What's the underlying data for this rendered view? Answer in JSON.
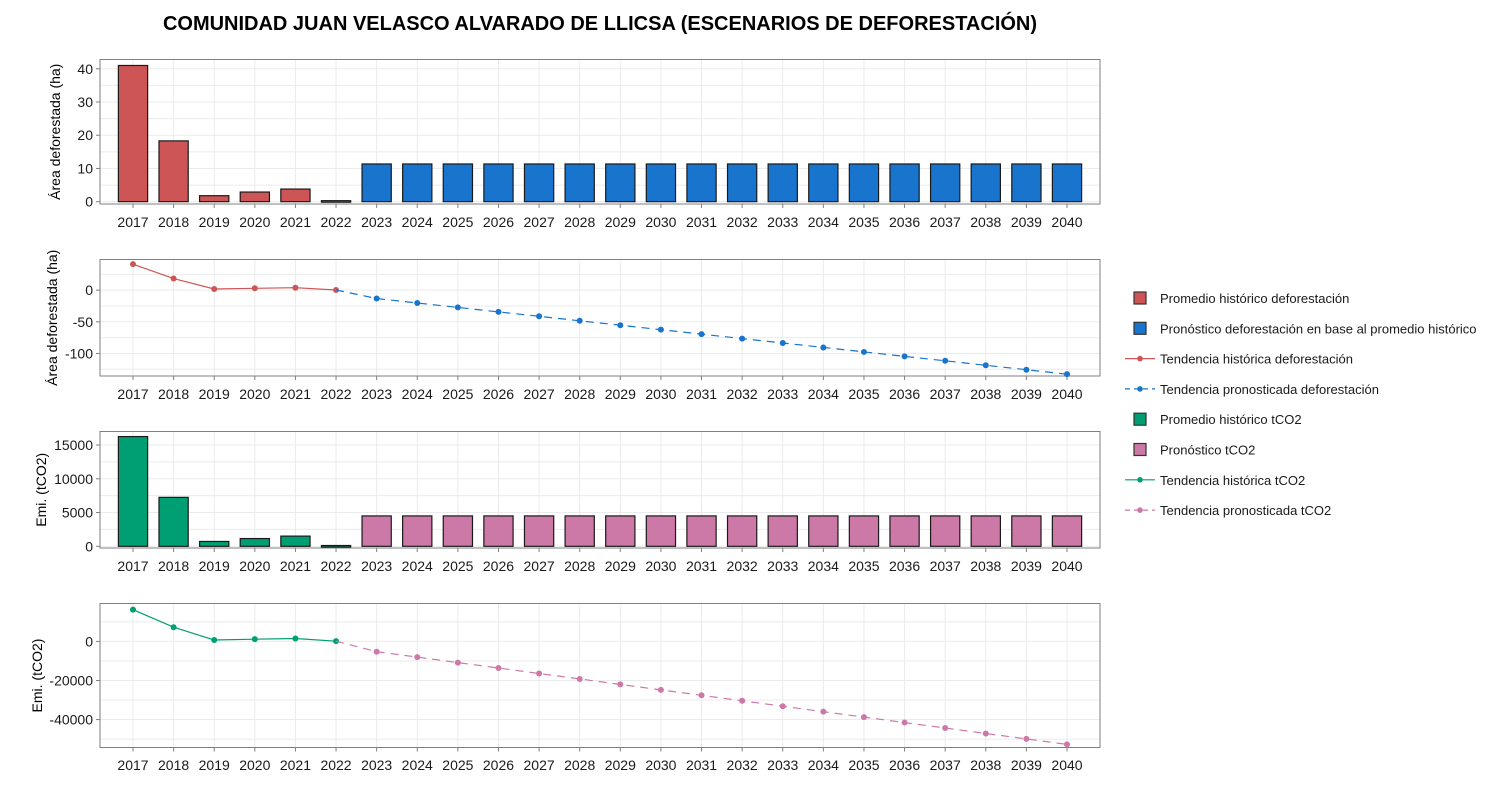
{
  "title": "COMUNIDAD JUAN VELASCO ALVARADO DE LLICSA (ESCENARIOS DE DEFORESTACIÓN)",
  "colors": {
    "hist_ha": "#CD5555",
    "fore_ha": "#1874CD",
    "hist_co2": "#009E73",
    "fore_co2": "#CC79A7",
    "bar_outline": "#1a1a1a"
  },
  "legend": {
    "placement": "right",
    "items": [
      {
        "label": "Promedio histórico deforestación",
        "kind": "box",
        "color_key": "hist_ha"
      },
      {
        "label": "Pronóstico deforestación en base al promedio histórico",
        "kind": "box",
        "color_key": "fore_ha"
      },
      {
        "label": "Tendencia histórica deforestación",
        "kind": "line-solid",
        "color_key": "hist_ha"
      },
      {
        "label": "Tendencia pronosticada deforestación",
        "kind": "line-dashed",
        "color_key": "fore_ha"
      },
      {
        "label": "Promedio histórico tCO2",
        "kind": "box",
        "color_key": "hist_co2"
      },
      {
        "label": "Pronóstico tCO2",
        "kind": "box",
        "color_key": "fore_co2"
      },
      {
        "label": "Tendencia histórica tCO2",
        "kind": "line-solid",
        "color_key": "hist_co2"
      },
      {
        "label": "Tendencia pronosticada tCO2",
        "kind": "line-dashed",
        "color_key": "fore_co2"
      }
    ]
  },
  "chart_data": [
    {
      "id": "bars-ha",
      "type": "bar",
      "ylabel": "Área deforestada (ha)",
      "xlabel": "",
      "categories": [
        "2017",
        "2018",
        "2019",
        "2020",
        "2021",
        "2022",
        "2023",
        "2024",
        "2025",
        "2026",
        "2027",
        "2028",
        "2029",
        "2030",
        "2031",
        "2032",
        "2033",
        "2034",
        "2035",
        "2036",
        "2037",
        "2038",
        "2039",
        "2040"
      ],
      "series": [
        {
          "name": "Promedio histórico deforestación",
          "color_key": "hist_ha",
          "values": [
            41.0,
            18.3,
            1.8,
            2.9,
            3.8,
            0.3,
            null,
            null,
            null,
            null,
            null,
            null,
            null,
            null,
            null,
            null,
            null,
            null,
            null,
            null,
            null,
            null,
            null,
            null
          ]
        },
        {
          "name": "Pronóstico deforestación en base al promedio histórico",
          "color_key": "fore_ha",
          "values": [
            null,
            null,
            null,
            null,
            null,
            null,
            11.35,
            11.35,
            11.35,
            11.35,
            11.35,
            11.35,
            11.35,
            11.35,
            11.35,
            11.35,
            11.35,
            11.35,
            11.35,
            11.35,
            11.35,
            11.35,
            11.35,
            11.35
          ]
        }
      ],
      "yticks": [
        0,
        10,
        20,
        30,
        40
      ],
      "ylim": [
        -0.7,
        42.8
      ],
      "grid": true
    },
    {
      "id": "trend-ha",
      "type": "line",
      "ylabel": "Área deforestada (ha)",
      "xlabel": "",
      "categories": [
        "2017",
        "2018",
        "2019",
        "2020",
        "2021",
        "2022",
        "2023",
        "2024",
        "2025",
        "2026",
        "2027",
        "2028",
        "2029",
        "2030",
        "2031",
        "2032",
        "2033",
        "2034",
        "2035",
        "2036",
        "2037",
        "2038",
        "2039",
        "2040"
      ],
      "series": [
        {
          "name": "Tendencia histórica deforestación",
          "color_key": "hist_ha",
          "dashed": false,
          "values": [
            41.0,
            18.3,
            1.8,
            2.9,
            3.8,
            0.3,
            null,
            null,
            null,
            null,
            null,
            null,
            null,
            null,
            null,
            null,
            null,
            null,
            null,
            null,
            null,
            null,
            null,
            null
          ]
        },
        {
          "name": "Tendencia pronosticada deforestación",
          "color_key": "fore_ha",
          "dashed": true,
          "connect_from_index": 5,
          "values": [
            null,
            null,
            null,
            null,
            null,
            0.3,
            -13.2,
            -20.3,
            -27.3,
            -34.3,
            -41.3,
            -48.4,
            -55.4,
            -62.4,
            -69.5,
            -76.5,
            -83.5,
            -90.5,
            -97.6,
            -104.6,
            -111.6,
            -118.7,
            -125.7,
            -132.7
          ]
        }
      ],
      "yticks": [
        0,
        -50,
        -100
      ],
      "ylim": [
        -135.6,
        48.4
      ],
      "grid": true
    },
    {
      "id": "bars-co2",
      "type": "bar",
      "ylabel": "Emi. (tCO2)",
      "xlabel": "",
      "categories": [
        "2017",
        "2018",
        "2019",
        "2020",
        "2021",
        "2022",
        "2023",
        "2024",
        "2025",
        "2026",
        "2027",
        "2028",
        "2029",
        "2030",
        "2031",
        "2032",
        "2033",
        "2034",
        "2035",
        "2036",
        "2037",
        "2038",
        "2039",
        "2040"
      ],
      "series": [
        {
          "name": "Promedio histórico tCO2",
          "color_key": "hist_co2",
          "values": [
            16250,
            7250,
            720,
            1150,
            1510,
            120,
            null,
            null,
            null,
            null,
            null,
            null,
            null,
            null,
            null,
            null,
            null,
            null,
            null,
            null,
            null,
            null,
            null,
            null
          ]
        },
        {
          "name": "Pronóstico tCO2",
          "color_key": "fore_co2",
          "values": [
            null,
            null,
            null,
            null,
            null,
            null,
            4500,
            4500,
            4500,
            4500,
            4500,
            4500,
            4500,
            4500,
            4500,
            4500,
            4500,
            4500,
            4500,
            4500,
            4500,
            4500,
            4500,
            4500
          ]
        }
      ],
      "yticks": [
        0,
        5000,
        10000,
        15000
      ],
      "ylim": [
        -250,
        17000
      ],
      "grid": true
    },
    {
      "id": "trend-co2",
      "type": "line",
      "ylabel": "Emi. (tCO2)",
      "xlabel": "",
      "categories": [
        "2017",
        "2018",
        "2019",
        "2020",
        "2021",
        "2022",
        "2023",
        "2024",
        "2025",
        "2026",
        "2027",
        "2028",
        "2029",
        "2030",
        "2031",
        "2032",
        "2033",
        "2034",
        "2035",
        "2036",
        "2037",
        "2038",
        "2039",
        "2040"
      ],
      "series": [
        {
          "name": "Tendencia histórica tCO2",
          "color_key": "hist_co2",
          "dashed": false,
          "values": [
            16250,
            7250,
            720,
            1150,
            1510,
            120,
            null,
            null,
            null,
            null,
            null,
            null,
            null,
            null,
            null,
            null,
            null,
            null,
            null,
            null,
            null,
            null,
            null,
            null
          ]
        },
        {
          "name": "Tendencia pronosticada tCO2",
          "color_key": "fore_co2",
          "dashed": true,
          "connect_from_index": 5,
          "values": [
            null,
            null,
            null,
            null,
            null,
            120,
            -5265,
            -8055,
            -10845,
            -13635,
            -16425,
            -19215,
            -22005,
            -24795,
            -27585,
            -30375,
            -33165,
            -35955,
            -38745,
            -41535,
            -44325,
            -47115,
            -49905,
            -52695
          ]
        }
      ],
      "yticks": [
        0,
        -20000,
        -40000
      ],
      "ylim": [
        -54300,
        19400
      ],
      "grid": true
    }
  ]
}
